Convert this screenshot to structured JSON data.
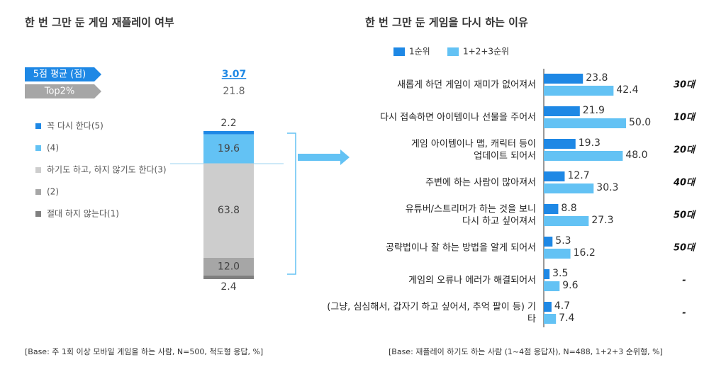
{
  "chart_data": [
    {
      "type": "stacked-bar",
      "title": "한 번 그만 둔 게임 재플레이 여부",
      "summary": [
        {
          "name": "5점 평균 (점)",
          "value": 3.07,
          "color": "#1e88e5"
        },
        {
          "name": "Top2%",
          "value": 21.8,
          "color": "#a6a6a6"
        }
      ],
      "series": [
        {
          "name": "꼭 다시 한다(5)",
          "color": "#1e88e5",
          "values": [
            2.2
          ]
        },
        {
          "name": "(4)",
          "color": "#63c2f4",
          "values": [
            19.6
          ]
        },
        {
          "name": "하기도 하고, 하지 않기도 한다(3)",
          "color": "#cdcdcd",
          "values": [
            63.8
          ]
        },
        {
          "name": "(2)",
          "color": "#a6a6a6",
          "values": [
            12.0
          ],
          "value_labels": [
            "12.0"
          ]
        },
        {
          "name": "절대 하지 않는다(1)",
          "color": "#7f7f7f",
          "values": [
            2.4
          ]
        }
      ],
      "footnote": "[Base: 주 1회 이상 모바일 게임을 하는 사람, N=500, 척도형 응답, %]"
    },
    {
      "type": "hbar",
      "title": "한 번 그만 둔 게임을 다시 하는 이유",
      "categories": [
        "새롭게 하던 게임이 재미가 없어져서",
        "다시 접속하면 아이템이나 선물을 주어서",
        "게임 아이템이나 맵, 캐릭터 등이\n업데이트 되어서",
        "주변에 하는 사람이 많아져서",
        "유튜버/스트리머가 하는 것을 보니\n다시 하고 싶어져서",
        "공략법이나 잘 하는 방법을 알게 되어서",
        "게임의 오류나 에러가 해결되어서",
        "(그냥, 심심해서, 갑자기 하고 싶어서, 추억 팔이 등) 기타"
      ],
      "series": [
        {
          "name": "1순위",
          "color": "#1e88e5",
          "values": [
            23.8,
            21.9,
            19.3,
            12.7,
            8.8,
            5.3,
            3.5,
            4.7
          ]
        },
        {
          "name": "1+2+3순위",
          "color": "#63c2f4",
          "values": [
            42.4,
            50.0,
            48.0,
            30.3,
            27.3,
            16.2,
            9.6,
            7.4
          ],
          "value_labels": [
            "42.4",
            "50.0",
            "48.0",
            "30.3",
            "27.3",
            "16.2",
            "9.6",
            "7.4"
          ]
        }
      ],
      "annotations": [
        "30대",
        "10대",
        "20대",
        "40대",
        "50대",
        "50대",
        "-",
        "-"
      ],
      "footnote": "[Base: 재플레이 하기도 하는 사람 (1~4점 응답자), N=488, 1+2+3 순위형, %]"
    }
  ]
}
